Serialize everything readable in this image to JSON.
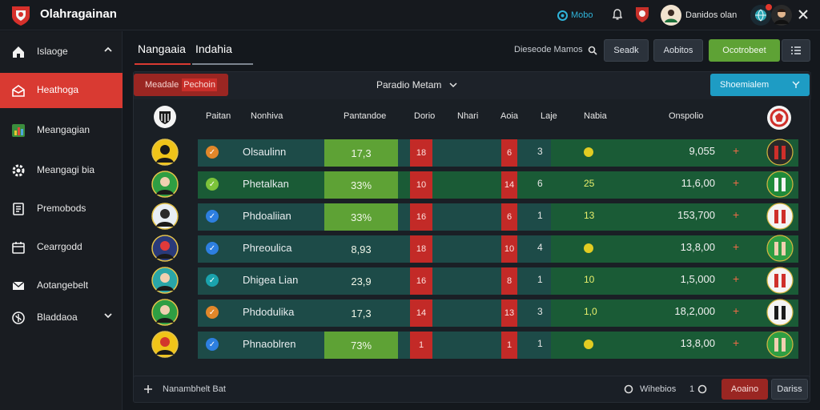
{
  "app": {
    "title": "Olahragainan"
  },
  "topbar": {
    "stat_label": "Mobo",
    "user_name": "Danidos olan"
  },
  "sidebar": {
    "items": [
      {
        "label": "Islaoge",
        "icon": "home-icon",
        "chevron": "up"
      },
      {
        "label": "Heathoga",
        "icon": "mail-open-icon",
        "active": true
      },
      {
        "label": "Meangagian",
        "icon": "chart-icon"
      },
      {
        "label": "Meangagi bia",
        "icon": "gear-icon"
      },
      {
        "label": "Premobods",
        "icon": "document-icon"
      },
      {
        "label": "Cearrgodd",
        "icon": "calendar-icon"
      },
      {
        "label": "Aotangebelt",
        "icon": "envelope-icon"
      },
      {
        "label": "Bladdaoa",
        "icon": "shield-icon",
        "chevron": "down"
      }
    ]
  },
  "tabs": [
    {
      "label": "Nangaaia",
      "active": true
    },
    {
      "label": "Indahia",
      "active": false
    }
  ],
  "toolbar": {
    "search_label": "Dieseode Mamos",
    "buttons": [
      "Seadk",
      "Aobitos",
      "Ocotrobeet"
    ]
  },
  "filter": {
    "left_btn_a": "Meadale",
    "left_btn_b": "Pechoin",
    "center_label": "Paradio Metam",
    "right_btn": "Shoemialem"
  },
  "columns": [
    "Paitan",
    "Nonhiva",
    "Pantandoe",
    "Dorio",
    "Nhari",
    "Aoia",
    "Laje",
    "Nabia",
    "Onspolio"
  ],
  "rows": [
    {
      "name": "Olsaulinn",
      "pct": "17,3",
      "pct_color": "#5ea235",
      "r1": "18",
      "r2": "6",
      "n": "3",
      "v": "",
      "v_dot": true,
      "big": "9,055",
      "check": "orange"
    },
    {
      "name": "Phetalkan",
      "pct": "33%",
      "pct_color": "#5ea235",
      "r1": "10",
      "r2": "14",
      "n": "6",
      "v": "25",
      "v_dot": false,
      "big": "11,6,00",
      "check": "green",
      "band_green": true
    },
    {
      "name": "Phdoaliian",
      "pct": "33%",
      "pct_color": "#5ea235",
      "r1": "16",
      "r2": "6",
      "n": "1",
      "v": "13",
      "v_dot": false,
      "big": "153,700",
      "check": "blue"
    },
    {
      "name": "Phreoulica",
      "pct": "8,93",
      "pct_color": "#1d4b48",
      "r1": "18",
      "r2": "10",
      "n": "4",
      "v": "",
      "v_dot": true,
      "big": "13,8,00",
      "check": "blue"
    },
    {
      "name": "Dhigea Lian",
      "pct": "23,9",
      "pct_color": "#1d4b48",
      "r1": "16",
      "r2": "8",
      "n": "1",
      "v": "10",
      "v_dot": false,
      "big": "1,5,000",
      "check": "teal"
    },
    {
      "name": "Phdodulika",
      "pct": "17,3",
      "pct_color": "#1d4b48",
      "r1": "14",
      "r2": "13",
      "n": "3",
      "v": "1,0",
      "v_dot": false,
      "big": "18,2,000",
      "check": "orange"
    },
    {
      "name": "Phnaoblren",
      "pct": "73%",
      "pct_color": "#5ea235",
      "r1": "1",
      "r2": "1",
      "n": "1",
      "v": "",
      "v_dot": true,
      "big": "13,8,00",
      "check": "blue"
    }
  ],
  "footer": {
    "left_label": "Nanambhelt Bat",
    "mid_label": "Wihebios",
    "mid_num": "1",
    "btn_red": "Aoaino",
    "btn_dark": "Dariss"
  },
  "colors": {
    "accent_red": "#d93a32",
    "accent_green": "#5ea235",
    "accent_cyan": "#1e9cc4",
    "band_teal": "#1d4b48",
    "band_green": "#1a5b36"
  }
}
